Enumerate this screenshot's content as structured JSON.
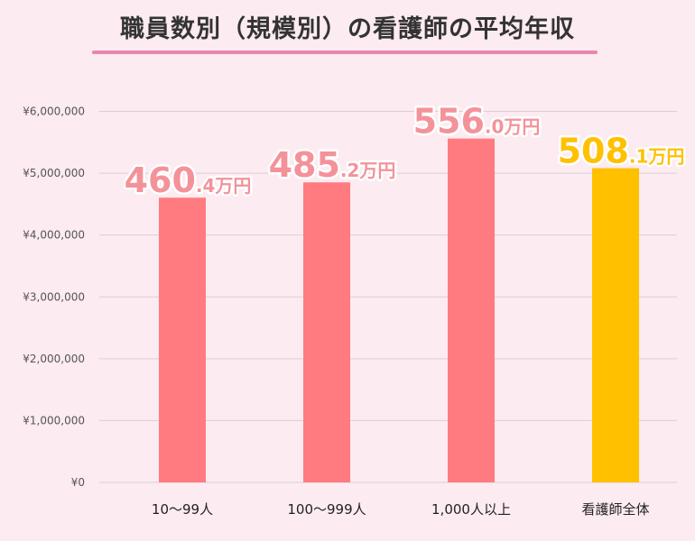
{
  "title": "職員数別（規模別）の看護師の平均年収",
  "chart_data": {
    "type": "bar",
    "title": "職員数別（規模別）の看護師の平均年収",
    "categories": [
      "10〜99人",
      "100〜999人",
      "1,000人以上",
      "看護師全体"
    ],
    "values": [
      4604000,
      4852000,
      5560000,
      5081000
    ],
    "data_labels": [
      {
        "main": "460",
        "sub": ".4万円"
      },
      {
        "main": "485",
        "sub": ".2万円"
      },
      {
        "main": "556",
        "sub": ".0万円"
      },
      {
        "main": "508",
        "sub": ".1万円"
      }
    ],
    "yticks": [
      0,
      1000000,
      2000000,
      3000000,
      4000000,
      5000000,
      6000000
    ],
    "ytick_labels": [
      "¥0",
      "¥1,000,000",
      "¥2,000,000",
      "¥3,000,000",
      "¥4,000,000",
      "¥5,000,000",
      "¥6,000,000"
    ],
    "ylim": [
      0,
      6000000
    ],
    "grid": true,
    "colors": {
      "bar": "#ff7b7f",
      "highlight_bar": "#ffc000",
      "label": "#f4929a",
      "highlight_label": "#ffc000",
      "grid": "#d9d0d4"
    },
    "highlight_index": 3
  }
}
